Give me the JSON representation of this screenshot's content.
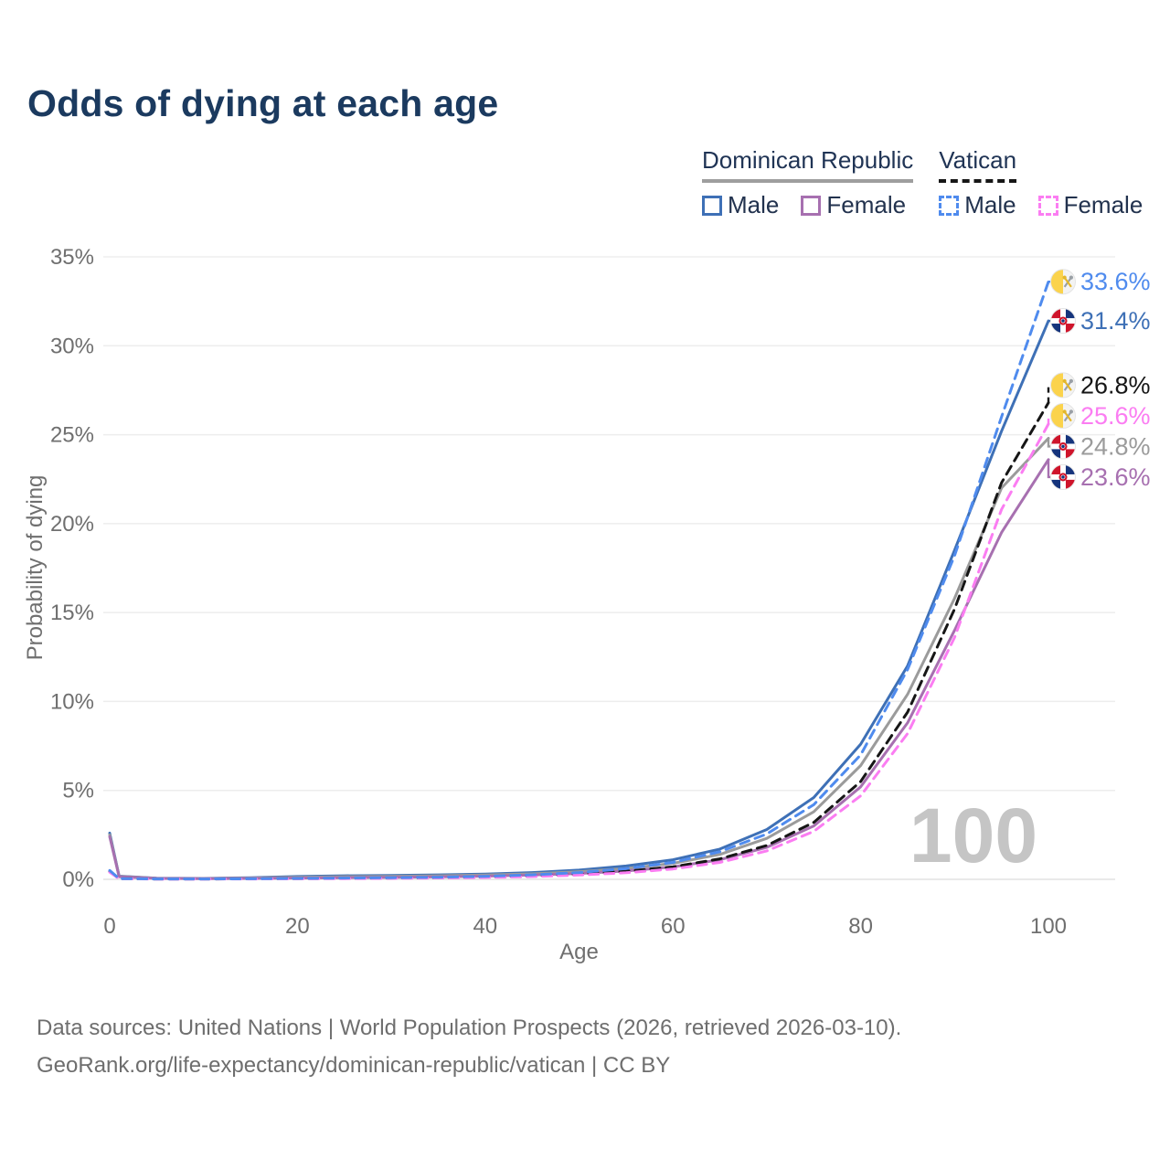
{
  "title": "Odds of dying at each age",
  "legend": {
    "groups": [
      {
        "name": "Dominican Republic",
        "style": "solid",
        "items": [
          {
            "label": "Male",
            "color": "#3e70b6"
          },
          {
            "label": "Female",
            "color": "#a770b0"
          }
        ]
      },
      {
        "name": "Vatican",
        "style": "dashed",
        "items": [
          {
            "label": "Male",
            "color": "#4f8bee"
          },
          {
            "label": "Female",
            "color": "#fb7df2"
          }
        ]
      }
    ]
  },
  "source": {
    "line1": "Data sources: United Nations | World Population Prospects (2026, retrieved 2026-03-10).",
    "line2": "GeoRank.org/life-expectancy/dominican-republic/vatican | CC BY"
  },
  "chart_data": {
    "type": "line",
    "title": "Odds of dying at each age",
    "xlabel": "Age",
    "ylabel": "Probability of dying",
    "xlim": [
      0,
      100
    ],
    "ylim": [
      0,
      35
    ],
    "x_ticks": [
      0,
      20,
      40,
      60,
      80,
      100
    ],
    "y_ticks": [
      0,
      5,
      10,
      15,
      20,
      25,
      30,
      35
    ],
    "y_tick_suffix": "%",
    "grid": "horizontal",
    "legend_position": "top-right",
    "watermark": "100",
    "colors": {
      "grid": "#ededed",
      "baseline": "#e2e2e2",
      "axis_text": "#6f6f6f",
      "watermark": "#c5c5c5",
      "title": "#1b3a5f"
    },
    "x": [
      0,
      1,
      5,
      10,
      15,
      20,
      25,
      30,
      35,
      40,
      45,
      50,
      55,
      60,
      65,
      70,
      75,
      80,
      85,
      90,
      95,
      100
    ],
    "series": [
      {
        "id": "dominican-republic-male",
        "name": "Dominican Republic Male",
        "country": "Dominican Republic",
        "flag": "dominican",
        "sex": "Male",
        "color": "#3e70b6",
        "dash": false,
        "end_label": "31.4%",
        "values": [
          2.6,
          0.18,
          0.06,
          0.05,
          0.09,
          0.16,
          0.2,
          0.22,
          0.25,
          0.3,
          0.38,
          0.52,
          0.75,
          1.1,
          1.7,
          2.8,
          4.6,
          7.6,
          12.0,
          18.5,
          25.2,
          31.4
        ]
      },
      {
        "id": "dominican-republic-total",
        "name": "Dominican Republic",
        "country": "Dominican Republic",
        "flag": "dominican",
        "sex": "Both",
        "color": "#9b9b9b",
        "dash": false,
        "end_label": "24.8%",
        "values": [
          2.5,
          0.17,
          0.055,
          0.045,
          0.07,
          0.12,
          0.15,
          0.17,
          0.2,
          0.24,
          0.31,
          0.43,
          0.6,
          0.9,
          1.4,
          2.3,
          3.8,
          6.4,
          10.4,
          15.8,
          22.0,
          24.8
        ]
      },
      {
        "id": "dominican-republic-female",
        "name": "Dominican Republic Female",
        "country": "Dominican Republic",
        "flag": "dominican",
        "sex": "Female",
        "color": "#a770b0",
        "dash": false,
        "end_label": "23.6%",
        "values": [
          2.4,
          0.15,
          0.05,
          0.04,
          0.05,
          0.07,
          0.09,
          0.11,
          0.14,
          0.18,
          0.24,
          0.33,
          0.47,
          0.7,
          1.1,
          1.8,
          3.0,
          5.2,
          8.8,
          14.0,
          19.5,
          23.6
        ]
      },
      {
        "id": "vatican-total",
        "name": "Vatican",
        "country": "Vatican",
        "flag": "vatican",
        "sex": "Both",
        "color": "#161616",
        "dash": true,
        "end_label": "26.8%",
        "values": [
          0.45,
          0.035,
          0.018,
          0.018,
          0.025,
          0.04,
          0.055,
          0.07,
          0.095,
          0.13,
          0.19,
          0.29,
          0.45,
          0.7,
          1.15,
          1.9,
          3.2,
          5.5,
          9.4,
          15.2,
          22.3,
          26.8
        ]
      },
      {
        "id": "vatican-female",
        "name": "Vatican Female",
        "country": "Vatican",
        "flag": "vatican",
        "sex": "Female",
        "color": "#fb7df2",
        "dash": true,
        "end_label": "25.6%",
        "values": [
          0.4,
          0.03,
          0.015,
          0.015,
          0.02,
          0.03,
          0.04,
          0.055,
          0.075,
          0.105,
          0.155,
          0.24,
          0.37,
          0.58,
          0.95,
          1.6,
          2.7,
          4.7,
          8.2,
          13.6,
          20.8,
          25.6
        ]
      },
      {
        "id": "vatican-male",
        "name": "Vatican Male",
        "country": "Vatican",
        "flag": "vatican",
        "sex": "Male",
        "color": "#4f8bee",
        "dash": true,
        "end_label": "33.6%",
        "values": [
          0.5,
          0.04,
          0.02,
          0.02,
          0.03,
          0.05,
          0.07,
          0.09,
          0.12,
          0.17,
          0.25,
          0.38,
          0.6,
          0.95,
          1.55,
          2.55,
          4.2,
          7.0,
          11.8,
          18.2,
          26.0,
          33.6
        ]
      }
    ]
  }
}
